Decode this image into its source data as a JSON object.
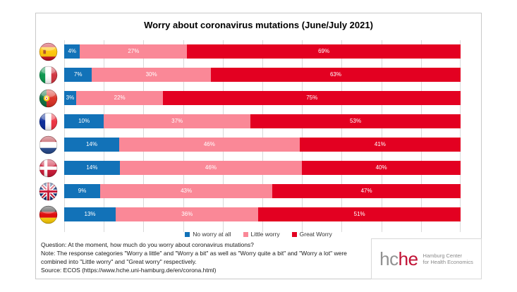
{
  "title": "Worry about coronavirus mutations (June/July 2021)",
  "chart_data": {
    "type": "bar",
    "stacked": true,
    "orientation": "horizontal",
    "title": "Worry about coronavirus mutations (June/July 2021)",
    "xlabel": "",
    "ylabel": "",
    "xlim": [
      0,
      100
    ],
    "unit": "%",
    "grid": "vertical gridlines every 10%",
    "legend_position": "bottom",
    "categories": [
      "Spain",
      "Italy",
      "Portugal",
      "France",
      "Netherlands",
      "Denmark",
      "United Kingdom",
      "Germany"
    ],
    "series": [
      {
        "name": "No worry at all",
        "color": "#1272b8",
        "values": [
          4,
          7,
          3,
          10,
          14,
          14,
          9,
          13
        ]
      },
      {
        "name": "Little worry",
        "color": "#fa8897",
        "values": [
          27,
          30,
          22,
          37,
          46,
          46,
          43,
          36
        ]
      },
      {
        "name": "Great Worry",
        "color": "#e30021",
        "values": [
          69,
          63,
          75,
          53,
          41,
          40,
          47,
          51
        ]
      }
    ]
  },
  "flags": [
    {
      "country": "Spain",
      "key": "spain",
      "icon": "flag-spain-icon"
    },
    {
      "country": "Italy",
      "key": "italy",
      "icon": "flag-italy-icon"
    },
    {
      "country": "Portugal",
      "key": "portugal",
      "icon": "flag-portugal-icon"
    },
    {
      "country": "France",
      "key": "france",
      "icon": "flag-france-icon"
    },
    {
      "country": "Netherlands",
      "key": "netherlands",
      "icon": "flag-netherlands-icon"
    },
    {
      "country": "Denmark",
      "key": "denmark",
      "icon": "flag-denmark-icon"
    },
    {
      "country": "United Kingdom",
      "key": "uk",
      "icon": "flag-uk-icon"
    },
    {
      "country": "Germany",
      "key": "germany",
      "icon": "flag-germany-icon"
    }
  ],
  "footer": {
    "question": "Question: At the moment, how much do you worry about coronavirus mutations?",
    "note_line1": "Note: The response categories \"Worry a little\"  and \"Worry a bit\" as well as \"Worry quite a bit\" and \"Worry a lot\" were",
    "note_line2": "combined into \"Little worry\" and \"Great worry\" respectively.",
    "source": "Source: ECOS (https://www.hche.uni-hamburg.de/en/corona.html)"
  },
  "logo": {
    "word_gray": "hc",
    "word_red": "he",
    "subtitle_line1": "Hamburg Center",
    "subtitle_line2": "for Health Economics"
  },
  "colors": {
    "gridline": "#d9d9d9",
    "card_border": "#c9c9c9",
    "label_text": "#ffffff"
  }
}
